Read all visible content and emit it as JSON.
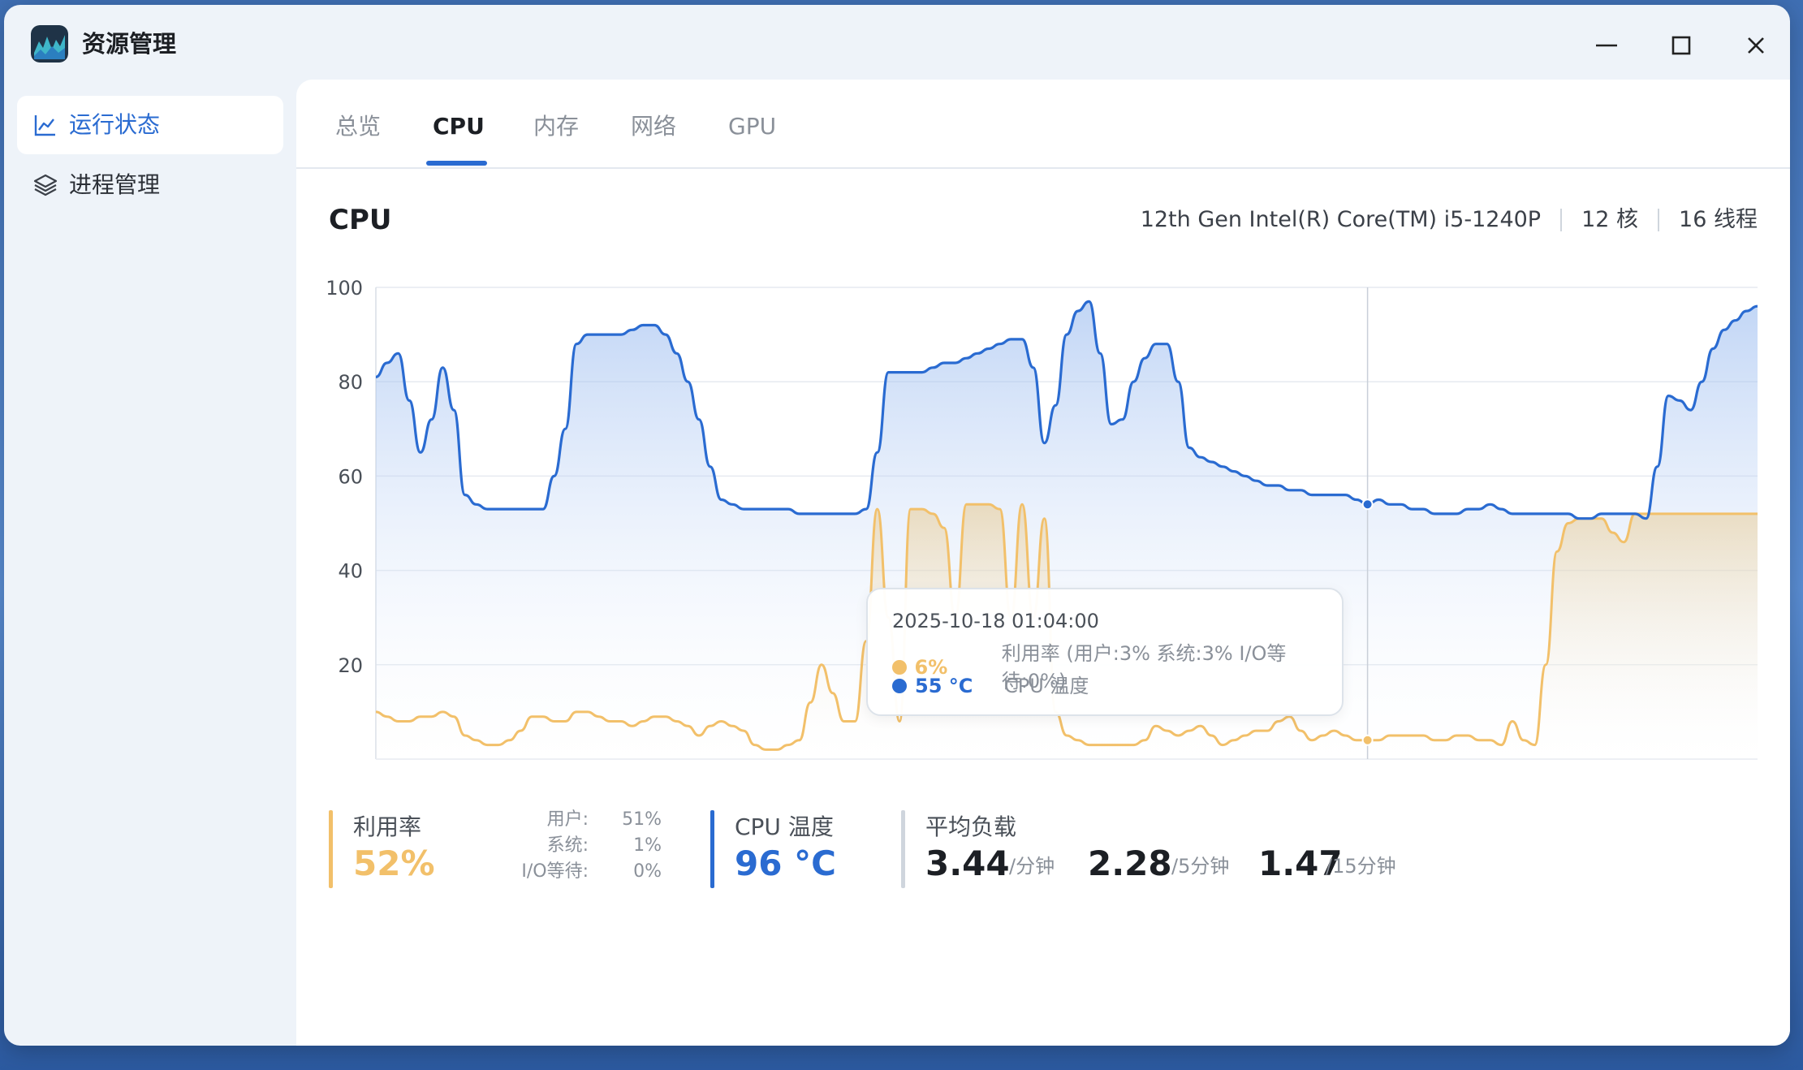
{
  "app": {
    "title": "资源管理"
  },
  "sidebar": {
    "items": [
      {
        "label": "运行状态",
        "icon": "line-chart-icon",
        "active": true
      },
      {
        "label": "进程管理",
        "icon": "layers-icon",
        "active": false
      }
    ]
  },
  "tabs": [
    {
      "label": "总览",
      "active": false
    },
    {
      "label": "CPU",
      "active": true
    },
    {
      "label": "内存",
      "active": false
    },
    {
      "label": "网络",
      "active": false
    },
    {
      "label": "GPU",
      "active": false
    }
  ],
  "header": {
    "title": "CPU",
    "model": "12th Gen Intel(R) Core(TM) i5-1240P",
    "cores": "12 核",
    "threads": "16 线程"
  },
  "colors": {
    "temperature": "#2a6bd1",
    "utilization": "#f2c06a",
    "accent": "#2a6bd1"
  },
  "chart_data": {
    "type": "line",
    "ylim": [
      0,
      100
    ],
    "yticks": [
      "100",
      "80",
      "60",
      "40",
      "20"
    ],
    "grid": true,
    "series": [
      {
        "name": "CPU 温度",
        "values": [
          81,
          84,
          86,
          76,
          65,
          72,
          83,
          74,
          56,
          54,
          53,
          53,
          53,
          53,
          53,
          53,
          60,
          70,
          88,
          90,
          90,
          90,
          90,
          91,
          92,
          92,
          90,
          86,
          80,
          72,
          62,
          55,
          54,
          53,
          53,
          53,
          53,
          53,
          52,
          52,
          52,
          52,
          52,
          52,
          53,
          65,
          82,
          82,
          82,
          82,
          83,
          84,
          84,
          85,
          86,
          87,
          88,
          89,
          89,
          83,
          67,
          75,
          90,
          95,
          97,
          86,
          71,
          72,
          80,
          85,
          88,
          88,
          80,
          66,
          64,
          63,
          62,
          61,
          60,
          59,
          58,
          58,
          57,
          57,
          56,
          56,
          56,
          56,
          55,
          54,
          55,
          54,
          54,
          53,
          53,
          52,
          52,
          52,
          53,
          53,
          54,
          53,
          52,
          52,
          52,
          52,
          52,
          52,
          51,
          51,
          52,
          52,
          52,
          52,
          51,
          62,
          77,
          76,
          74,
          80,
          87,
          91,
          93,
          95,
          96
        ]
      },
      {
        "name": "利用率",
        "values": [
          10,
          9,
          8,
          8,
          9,
          9,
          10,
          9,
          5,
          4,
          3,
          3,
          4,
          6,
          9,
          9,
          8,
          8,
          10,
          10,
          9,
          8,
          8,
          7,
          8,
          9,
          9,
          8,
          7,
          5,
          7,
          8,
          7,
          6,
          3,
          2,
          2,
          3,
          4,
          12,
          20,
          14,
          8,
          8,
          25,
          53,
          30,
          8,
          53,
          53,
          52,
          49,
          30,
          54,
          54,
          54,
          53,
          30,
          54,
          30,
          51,
          10,
          5,
          4,
          3,
          3,
          3,
          3,
          3,
          4,
          7,
          6,
          5,
          6,
          7,
          5,
          3,
          4,
          5,
          6,
          6,
          8,
          9,
          6,
          4,
          5,
          6,
          5,
          4,
          4,
          4,
          5,
          5,
          5,
          5,
          4,
          4,
          5,
          5,
          4,
          4,
          3,
          8,
          4,
          3,
          20,
          44,
          50,
          51,
          51,
          51,
          48,
          46,
          52,
          52,
          52,
          52,
          52,
          52,
          52,
          52,
          52,
          52,
          52,
          52
        ]
      }
    ],
    "tooltip": {
      "time": "2025-10-18 01:04:00",
      "util_value": "6%",
      "util_desc": "利用率 (用户:3% 系统:3% I/O等待:0%)",
      "temp_value": "55 °C",
      "temp_desc": "CPU 温度"
    }
  },
  "stats": {
    "util": {
      "label": "利用率",
      "value": "52%",
      "user_label": "用户:",
      "user_value": "51%",
      "system_label": "系统:",
      "system_value": "1%",
      "io_label": "I/O等待:",
      "io_value": "0%"
    },
    "temp": {
      "label": "CPU 温度",
      "value": "96 °C"
    },
    "load": {
      "label": "平均负载",
      "v1": "3.44",
      "u1": "/分钟",
      "v5": "2.28",
      "u5": "/5分钟",
      "v15": "1.47",
      "u15": "/15分钟"
    }
  }
}
